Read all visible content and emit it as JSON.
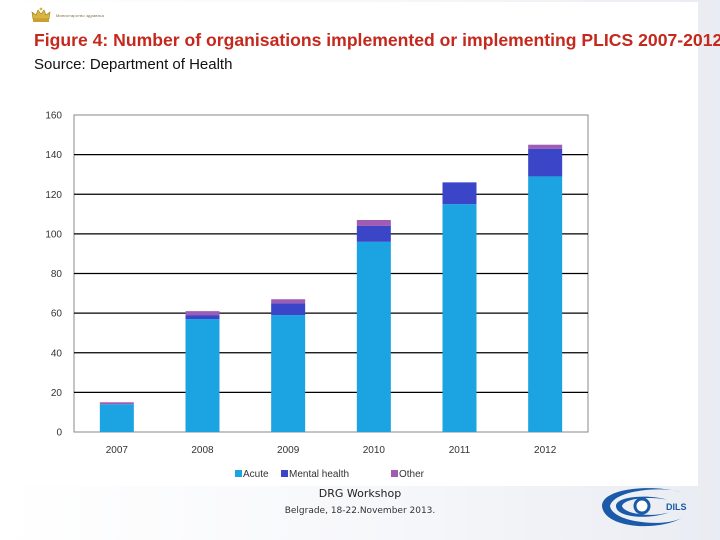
{
  "header": {
    "crest_label": "Министарство здравља",
    "figure_title": "Figure 4: Number of organisations implemented or implementing PLICS 2007-2012",
    "source": "Source: Department of Health"
  },
  "chart_data": {
    "type": "bar",
    "stacked": true,
    "categories": [
      "2007",
      "2008",
      "2009",
      "2010",
      "2011",
      "2012"
    ],
    "series": [
      {
        "name": "Acute",
        "color": "#1ba3e2",
        "values": [
          14,
          57,
          59,
          96,
          115,
          129
        ]
      },
      {
        "name": "Mental health",
        "color": "#3a45c8",
        "values": [
          0,
          2,
          6,
          8,
          11,
          14
        ]
      },
      {
        "name": "Other",
        "color": "#a05cb2",
        "values": [
          1,
          2,
          2,
          3,
          0,
          2
        ]
      }
    ],
    "ylim": [
      0,
      160
    ],
    "yticks": [
      "0",
      "20",
      "40",
      "60",
      "80",
      "100",
      "120",
      "140",
      "160"
    ],
    "grid": true,
    "legend": "bottom",
    "xlabel": "",
    "ylabel": ""
  },
  "footer": {
    "workshop": "DRG Workshop",
    "dates": "Belgrade, 18-22.November 2013.",
    "logo_text": "DILS"
  }
}
